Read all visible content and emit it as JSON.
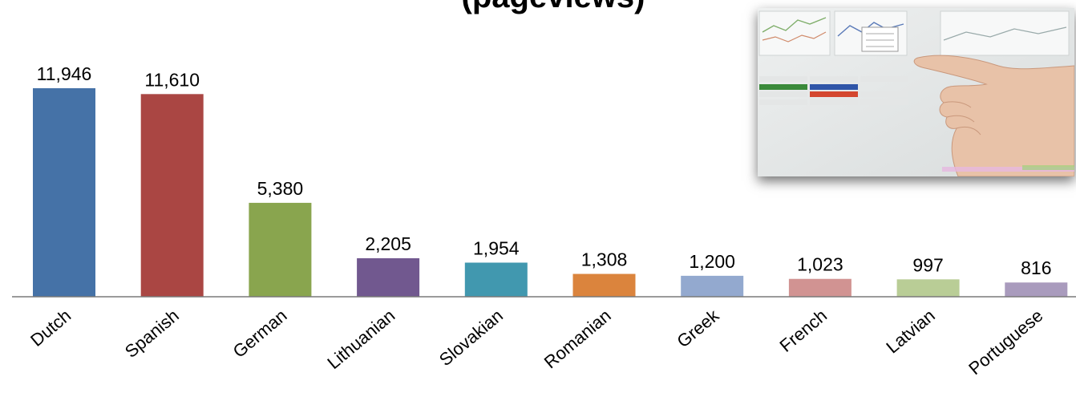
{
  "chart_data": {
    "type": "bar",
    "title": "(pageviews)",
    "xlabel": "",
    "ylabel": "",
    "ylim": [
      0,
      11946
    ],
    "grid": false,
    "categories": [
      "Dutch",
      "Spanish",
      "German",
      "Lithuanian",
      "Slovakian",
      "Romanian",
      "Greek",
      "French",
      "Latvian",
      "Portuguese"
    ],
    "values": [
      11946,
      11610,
      5380,
      2205,
      1954,
      1308,
      1200,
      1023,
      997,
      816
    ],
    "value_labels": [
      "11,946",
      "11,610",
      "5,380",
      "2,205",
      "1,954",
      "1,308",
      "1,200",
      "1,023",
      "997",
      "816"
    ],
    "colors": [
      "#4572a7",
      "#aa4643",
      "#89a54e",
      "#71588f",
      "#4198af",
      "#db843d",
      "#93a9cf",
      "#d19392",
      "#b9cd96",
      "#a99bbd"
    ]
  },
  "photo": {
    "icon": "hand-pointing-at-chart-photo"
  }
}
